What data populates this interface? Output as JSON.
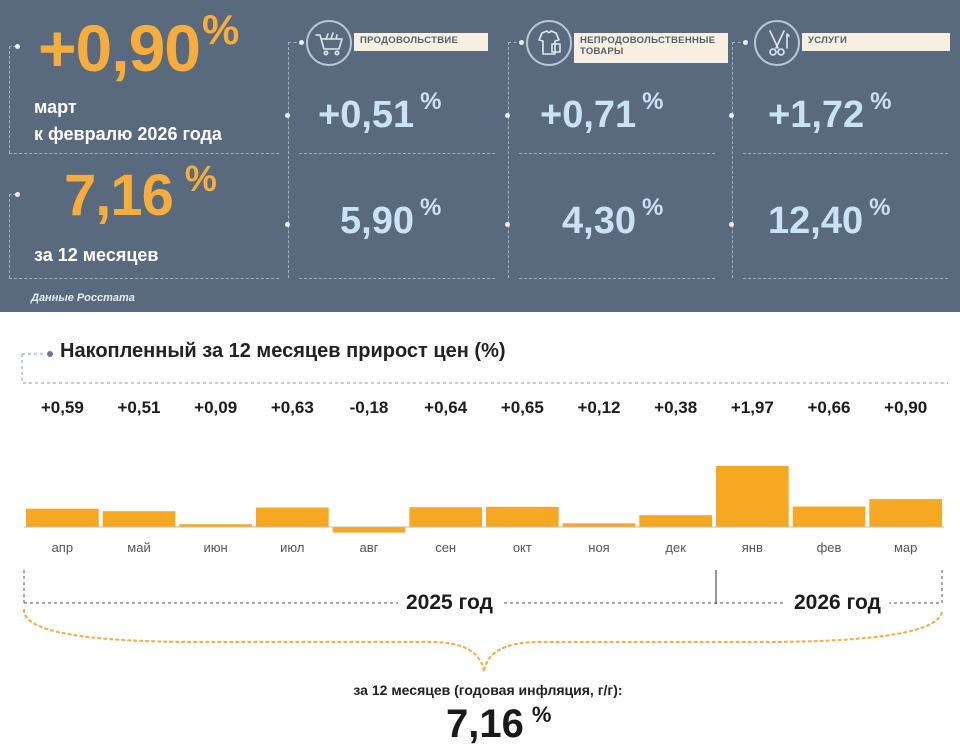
{
  "summary": {
    "monthly": {
      "value": "+0,90",
      "unit": "%",
      "line1": "март",
      "line2": "к февралю 2026 года"
    },
    "yearly": {
      "value": "7,16",
      "unit": "%",
      "label": "за 12 месяцев"
    },
    "source": "Данные Росстата",
    "categories": [
      {
        "icon": "shopping-cart-icon",
        "label": "ПРОДОВОЛЬСТВИЕ",
        "monthly": "+0,51",
        "yearly": "5,90",
        "unit": "%"
      },
      {
        "icon": "clothes-icon",
        "label_line1": "НЕПРОДОВОЛЬСТВЕННЫЕ",
        "label_line2": "ТОВАРЫ",
        "monthly": "+0,71",
        "yearly": "4,30",
        "unit": "%"
      },
      {
        "icon": "scissors-icon",
        "label": "УСЛУГИ",
        "monthly": "+1,72",
        "yearly": "12,40",
        "unit": "%"
      }
    ],
    "colors": {
      "panel": "#5a6a7e",
      "accent": "#f7ad3c",
      "value_blue": "#c9e2f6"
    }
  },
  "chart_data": {
    "type": "bar",
    "title": "Накопленный за 12 месяцев прирост цен (%)",
    "categories": [
      "апр",
      "май",
      "июн",
      "июл",
      "авг",
      "сен",
      "окт",
      "ноя",
      "дек",
      "янв",
      "фев",
      "мар"
    ],
    "values": [
      0.59,
      0.51,
      0.09,
      0.63,
      -0.18,
      0.64,
      0.65,
      0.12,
      0.38,
      1.97,
      0.66,
      0.9
    ],
    "value_labels": [
      "+0,59",
      "+0,51",
      "+0,09",
      "+0,63",
      "-0,18",
      "+0,64",
      "+0,65",
      "+0,12",
      "+0,38",
      "+1,97",
      "+0,66",
      "+0,90"
    ],
    "bar_color": "#f7a823",
    "year_groups": [
      {
        "label": "2025 год",
        "months": [
          "апр",
          "май",
          "июн",
          "июл",
          "авг",
          "сен",
          "окт",
          "ноя",
          "дек"
        ]
      },
      {
        "label": "2026 год",
        "months": [
          "янв",
          "фев",
          "мар"
        ]
      }
    ],
    "annual_caption": "за 12 месяцев (годовая инфляция, г/г):",
    "annual_value": "7,16",
    "annual_unit": "%"
  }
}
